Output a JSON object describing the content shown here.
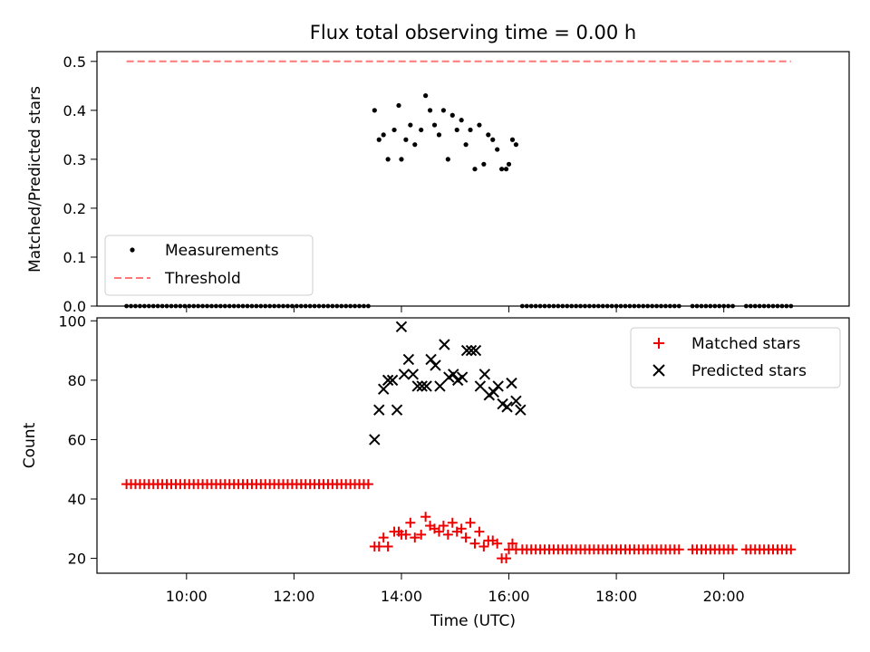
{
  "chart_data": [
    {
      "type": "scatter",
      "title": "Flux total observing time = 0.00 h",
      "xlabel": "",
      "ylabel": "Matched/Predicted stars",
      "ylim": [
        0,
        0.52
      ],
      "yticks": [
        0.0,
        0.1,
        0.2,
        0.3,
        0.4,
        0.5
      ],
      "ytick_labels": [
        "0.0",
        "0.1",
        "0.2",
        "0.3",
        "0.4",
        "0.5"
      ],
      "legend": {
        "placement": "lower-left",
        "entries": [
          "Measurements",
          "Threshold"
        ]
      },
      "threshold": {
        "name": "Threshold",
        "value": 0.5,
        "color": "#ff7777",
        "x_start": "08:53",
        "x_end": "21:15"
      },
      "series": [
        {
          "name": "Measurements",
          "color": "#000000",
          "points": [
            [
              "13:30",
              0.4
            ],
            [
              "13:35",
              0.34
            ],
            [
              "13:40",
              0.35
            ],
            [
              "13:45",
              0.3
            ],
            [
              "13:52",
              0.36
            ],
            [
              "13:57",
              0.41
            ],
            [
              "14:00",
              0.3
            ],
            [
              "14:05",
              0.34
            ],
            [
              "14:10",
              0.37
            ],
            [
              "14:15",
              0.33
            ],
            [
              "14:22",
              0.36
            ],
            [
              "14:27",
              0.43
            ],
            [
              "14:32",
              0.4
            ],
            [
              "14:37",
              0.37
            ],
            [
              "14:42",
              0.35
            ],
            [
              "14:47",
              0.4
            ],
            [
              "14:52",
              0.3
            ],
            [
              "14:57",
              0.39
            ],
            [
              "15:02",
              0.36
            ],
            [
              "15:07",
              0.38
            ],
            [
              "15:12",
              0.33
            ],
            [
              "15:17",
              0.36
            ],
            [
              "15:22",
              0.28
            ],
            [
              "15:27",
              0.37
            ],
            [
              "15:32",
              0.29
            ],
            [
              "15:37",
              0.35
            ],
            [
              "15:42",
              0.34
            ],
            [
              "15:47",
              0.32
            ],
            [
              "15:52",
              0.28
            ],
            [
              "15:57",
              0.28
            ],
            [
              "16:00",
              0.29
            ],
            [
              "16:04",
              0.34
            ],
            [
              "16:08",
              0.33
            ]
          ],
          "zero_segments": [
            [
              "08:53",
              "13:25"
            ],
            [
              "16:15",
              "19:10"
            ],
            [
              "19:25",
              "19:50"
            ],
            [
              "19:55",
              "20:10"
            ],
            [
              "20:25",
              "20:55"
            ],
            [
              "21:00",
              "21:15"
            ]
          ]
        }
      ]
    },
    {
      "type": "scatter",
      "title": "",
      "xlabel": "Time (UTC)",
      "ylabel": "Count",
      "ylim": [
        15,
        101
      ],
      "yticks": [
        20,
        40,
        60,
        80,
        100
      ],
      "ytick_labels": [
        "20",
        "40",
        "60",
        "80",
        "100"
      ],
      "xlim": [
        "08:20",
        "22:20"
      ],
      "xticks": [
        "10:00",
        "12:00",
        "14:00",
        "16:00",
        "18:00",
        "20:00"
      ],
      "legend": {
        "placement": "top-right",
        "entries": [
          "Matched stars",
          "Predicted stars"
        ]
      },
      "series": [
        {
          "name": "Matched stars",
          "color": "#ee0000",
          "marker": "plus",
          "flat_segments": [
            {
              "value": 45,
              "from": "08:53",
              "to": "13:25"
            },
            {
              "value": 23,
              "from": "16:15",
              "to": "19:10"
            },
            {
              "value": 23,
              "from": "19:25",
              "to": "19:50"
            },
            {
              "value": 23,
              "from": "19:55",
              "to": "20:10"
            },
            {
              "value": 23,
              "from": "20:25",
              "to": "20:55"
            },
            {
              "value": 23,
              "from": "21:00",
              "to": "21:15"
            }
          ],
          "points": [
            [
              "13:30",
              24
            ],
            [
              "13:35",
              24
            ],
            [
              "13:40",
              27
            ],
            [
              "13:45",
              24
            ],
            [
              "13:52",
              29
            ],
            [
              "13:57",
              29
            ],
            [
              "14:00",
              28
            ],
            [
              "14:05",
              28
            ],
            [
              "14:10",
              32
            ],
            [
              "14:15",
              27
            ],
            [
              "14:22",
              28
            ],
            [
              "14:27",
              34
            ],
            [
              "14:32",
              31
            ],
            [
              "14:37",
              30
            ],
            [
              "14:42",
              29
            ],
            [
              "14:47",
              31
            ],
            [
              "14:52",
              28
            ],
            [
              "14:57",
              32
            ],
            [
              "15:02",
              29
            ],
            [
              "15:07",
              30
            ],
            [
              "15:12",
              27
            ],
            [
              "15:17",
              32
            ],
            [
              "15:22",
              25
            ],
            [
              "15:27",
              29
            ],
            [
              "15:32",
              24
            ],
            [
              "15:37",
              26
            ],
            [
              "15:42",
              26
            ],
            [
              "15:47",
              25
            ],
            [
              "15:52",
              20
            ],
            [
              "15:57",
              20
            ],
            [
              "16:00",
              23
            ],
            [
              "16:04",
              25
            ],
            [
              "16:08",
              23
            ]
          ]
        },
        {
          "name": "Predicted stars",
          "color": "#000000",
          "marker": "x",
          "points": [
            [
              "13:30",
              60
            ],
            [
              "13:35",
              70
            ],
            [
              "13:40",
              77
            ],
            [
              "13:45",
              80
            ],
            [
              "13:50",
              80
            ],
            [
              "13:55",
              70
            ],
            [
              "14:00",
              98
            ],
            [
              "14:03",
              82
            ],
            [
              "14:08",
              87
            ],
            [
              "14:13",
              82
            ],
            [
              "14:18",
              78
            ],
            [
              "14:23",
              78
            ],
            [
              "14:28",
              78
            ],
            [
              "14:33",
              87
            ],
            [
              "14:38",
              85
            ],
            [
              "14:43",
              78
            ],
            [
              "14:48",
              92
            ],
            [
              "14:53",
              81
            ],
            [
              "14:58",
              82
            ],
            [
              "15:03",
              80
            ],
            [
              "15:08",
              81
            ],
            [
              "15:13",
              90
            ],
            [
              "15:18",
              90
            ],
            [
              "15:23",
              90
            ],
            [
              "15:28",
              78
            ],
            [
              "15:33",
              82
            ],
            [
              "15:38",
              75
            ],
            [
              "15:43",
              76
            ],
            [
              "15:48",
              78
            ],
            [
              "15:53",
              72
            ],
            [
              "15:58",
              71
            ],
            [
              "16:03",
              79
            ],
            [
              "16:08",
              73
            ],
            [
              "16:13",
              70
            ]
          ]
        }
      ]
    }
  ]
}
